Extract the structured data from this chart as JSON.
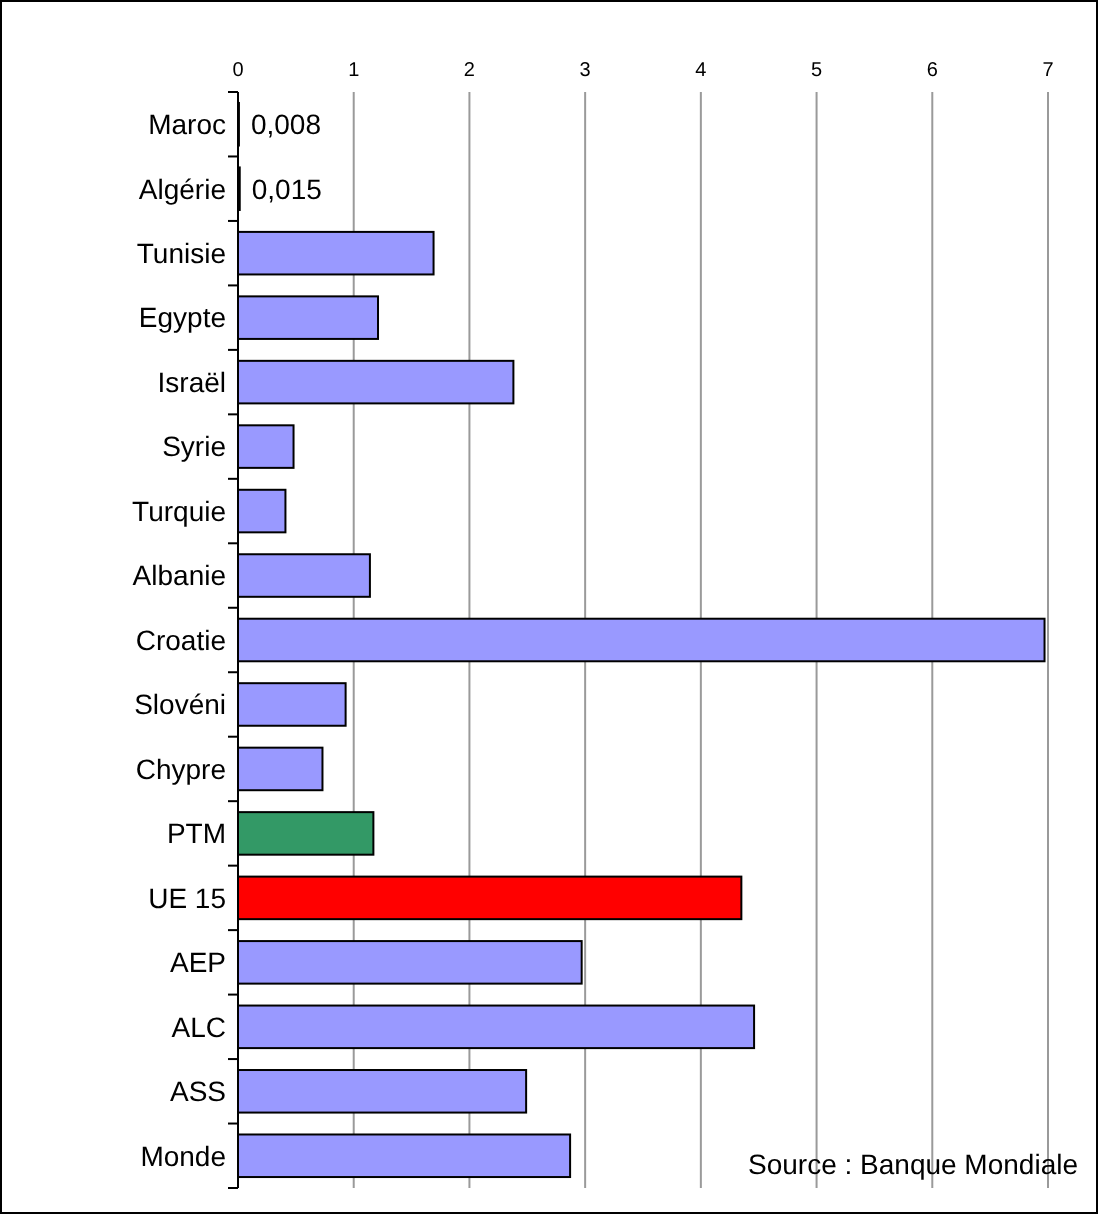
{
  "chart_data": {
    "type": "bar",
    "orientation": "horizontal",
    "categories": [
      "Maroc",
      "Algérie",
      "Tunisie",
      "Egypte",
      "Israël",
      "Syrie",
      "Turquie",
      "Albanie",
      "Croatie",
      "Slovéni",
      "Chypre",
      "PTM",
      "UE 15",
      "AEP",
      "ALC",
      "ASS",
      "Monde"
    ],
    "values": [
      0.008,
      0.015,
      1.69,
      1.21,
      2.38,
      0.48,
      0.41,
      1.14,
      6.97,
      0.93,
      0.73,
      1.17,
      4.35,
      2.97,
      4.46,
      2.49,
      2.87
    ],
    "value_labels": [
      "0,008",
      "0,015",
      null,
      null,
      null,
      null,
      null,
      null,
      null,
      null,
      null,
      null,
      null,
      null,
      null,
      null,
      null
    ],
    "colors": [
      "#9999ff",
      "#9999ff",
      "#9999ff",
      "#9999ff",
      "#9999ff",
      "#9999ff",
      "#9999ff",
      "#9999ff",
      "#9999ff",
      "#9999ff",
      "#9999ff",
      "#339966",
      "#ff0000",
      "#9999ff",
      "#9999ff",
      "#9999ff",
      "#9999ff"
    ],
    "xlim": [
      0,
      7
    ],
    "xticks": [
      0,
      1,
      2,
      3,
      4,
      5,
      6,
      7
    ],
    "grid": "x",
    "annotations": [
      "Source : Banque Mondiale"
    ]
  }
}
